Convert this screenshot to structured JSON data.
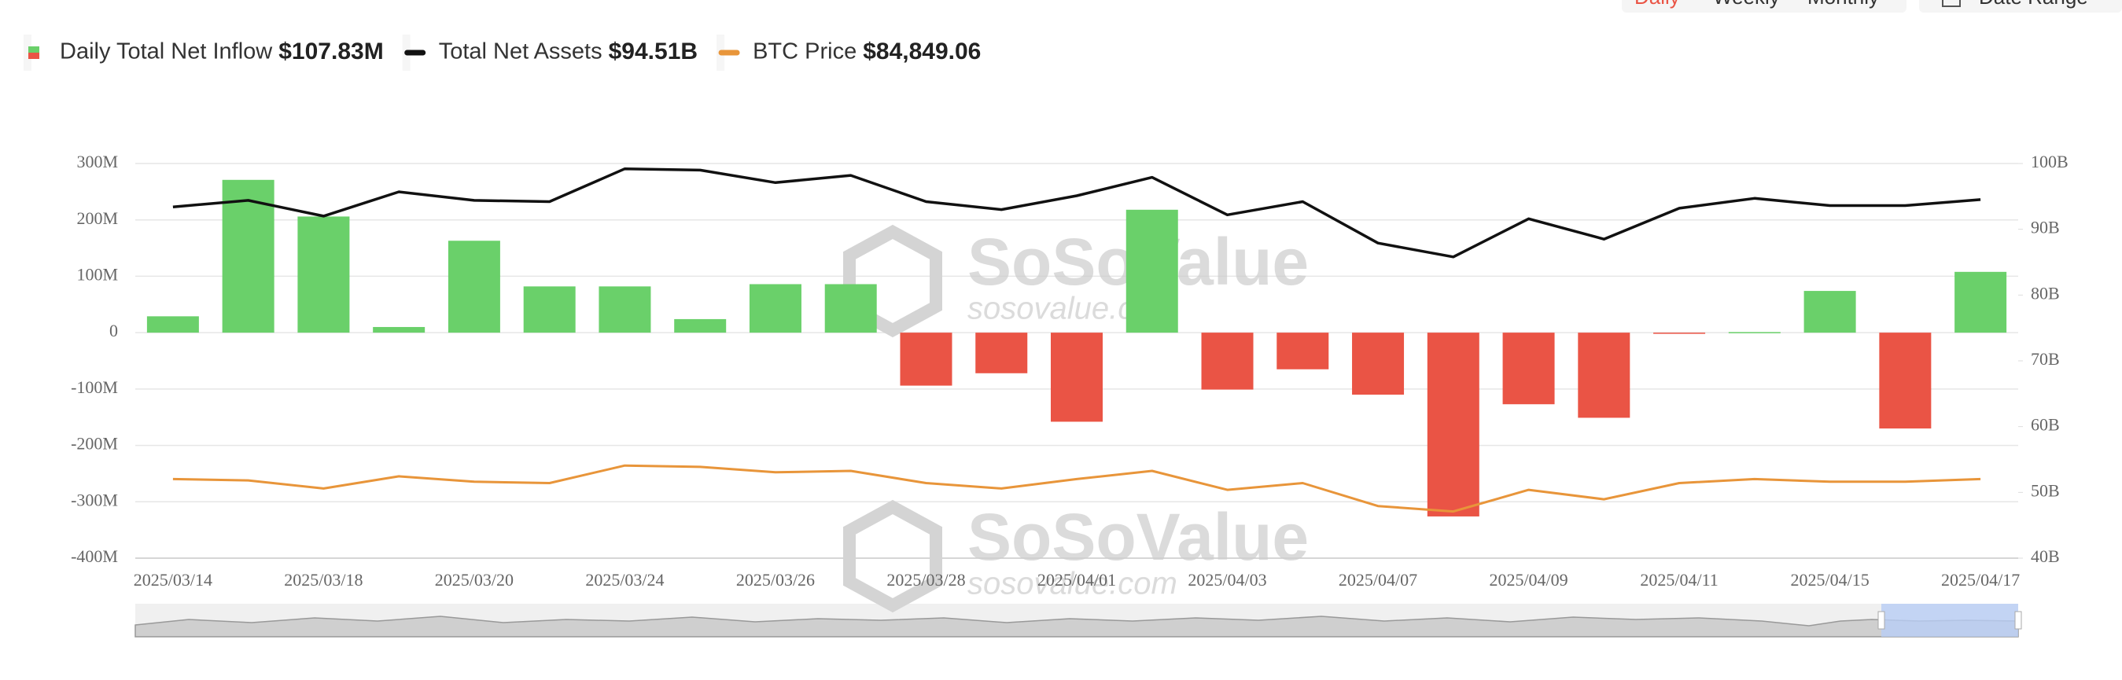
{
  "chart_data": {
    "type": "bar",
    "tabs": [
      "Daily",
      "Weekly",
      "Monthly"
    ],
    "date_range_label": "Date Range",
    "watermark": "SoSoValue",
    "watermark_url": "sosovalue.com",
    "categories": [
      "2025/03/14",
      null,
      "2025/03/18",
      null,
      "2025/03/20",
      null,
      "2025/03/24",
      null,
      "2025/03/26",
      null,
      "2025/03/28",
      null,
      "2025/04/01",
      null,
      "2025/04/03",
      null,
      "2025/04/07",
      null,
      "2025/04/09",
      null,
      "2025/04/11",
      null,
      "2025/04/15",
      null,
      "2025/04/17"
    ],
    "series": [
      {
        "name": "Daily Total Net Inflow",
        "legend_value": "$107.83M",
        "type": "bar",
        "positive_color": "#6ad06a",
        "negative_color": "#ea5445",
        "values": [
          29,
          271,
          206,
          10,
          163,
          82,
          82,
          24,
          86,
          86,
          -94,
          -72,
          -158,
          218,
          -101,
          -65,
          -110,
          -326,
          -127,
          -151,
          -1,
          1,
          74,
          -170,
          107.83
        ]
      },
      {
        "name": "Total Net Assets",
        "legend_value": "$94.51B",
        "type": "line",
        "axis": "y2",
        "color": "#111111",
        "values": [
          93.4,
          94.4,
          92.0,
          95.7,
          94.4,
          94.2,
          99.2,
          99.0,
          97.1,
          98.2,
          94.2,
          93.0,
          95.1,
          97.9,
          92.2,
          94.2,
          87.9,
          85.8,
          91.6,
          88.5,
          93.2,
          94.7,
          93.6,
          93.6,
          94.51
        ]
      },
      {
        "name": "BTC Price",
        "legend_value": "$84,849.06",
        "type": "line",
        "axis": "y3",
        "color": "#e8953a",
        "values": [
          84850,
          84490,
          82360,
          85560,
          84140,
          83780,
          88410,
          88050,
          86630,
          86990,
          83780,
          82360,
          84850,
          86990,
          82000,
          83780,
          77730,
          76310,
          82000,
          79510,
          83780,
          84850,
          84140,
          84140,
          84849.06
        ]
      }
    ],
    "ylim": [
      -400,
      300
    ],
    "yticks": [
      {
        "value": -400,
        "label": "-400M"
      },
      {
        "value": -300,
        "label": "-300M"
      },
      {
        "value": -200,
        "label": "-200M"
      },
      {
        "value": -100,
        "label": "-100M"
      },
      0,
      {
        "value": 100,
        "label": "100M"
      },
      {
        "value": 200,
        "label": "200M"
      },
      {
        "value": 300,
        "label": "300M"
      }
    ],
    "y2lim": [
      40,
      100
    ],
    "y2ticks": [
      {
        "value": 40,
        "label": "40B"
      },
      {
        "value": 50,
        "label": "50B"
      },
      {
        "value": 60,
        "label": "60B"
      },
      {
        "value": 70,
        "label": "70B"
      },
      {
        "value": 80,
        "label": "80B"
      },
      {
        "value": 90,
        "label": "90B"
      },
      {
        "value": 100,
        "label": "100B"
      }
    ],
    "y3lim": [
      64000,
      168000
    ],
    "grid": true
  }
}
